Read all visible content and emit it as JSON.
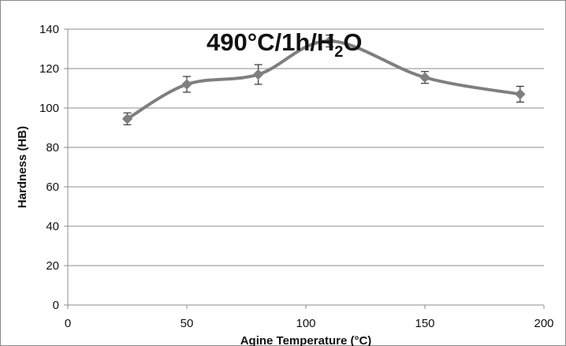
{
  "chart_data": {
    "type": "line",
    "title": {
      "prefix": "490°C/1h/H",
      "subscript": "2",
      "suffix": "O"
    },
    "xlabel": "Agine Temperature (°C)",
    "ylabel": "Hardness (HB)",
    "xlim": [
      0,
      200
    ],
    "ylim": [
      0,
      140
    ],
    "x_ticks": [
      0,
      50,
      100,
      150,
      200
    ],
    "y_ticks": [
      0,
      20,
      40,
      60,
      80,
      100,
      120,
      140
    ],
    "x_tick_labels": [
      "0",
      "50",
      "100",
      "150",
      "200"
    ],
    "y_tick_labels": [
      "0",
      "20",
      "40",
      "60",
      "80",
      "100",
      "120",
      "140"
    ],
    "grid": "horizontal",
    "legend": "none",
    "series": [
      {
        "x": [
          25,
          50,
          80,
          110,
          150,
          190
        ],
        "y": [
          94.5,
          112,
          117,
          134,
          115.5,
          107
        ],
        "error": [
          3,
          4,
          5,
          3,
          3,
          4
        ],
        "marker": "diamond",
        "color": "#7f7f7f"
      }
    ]
  }
}
